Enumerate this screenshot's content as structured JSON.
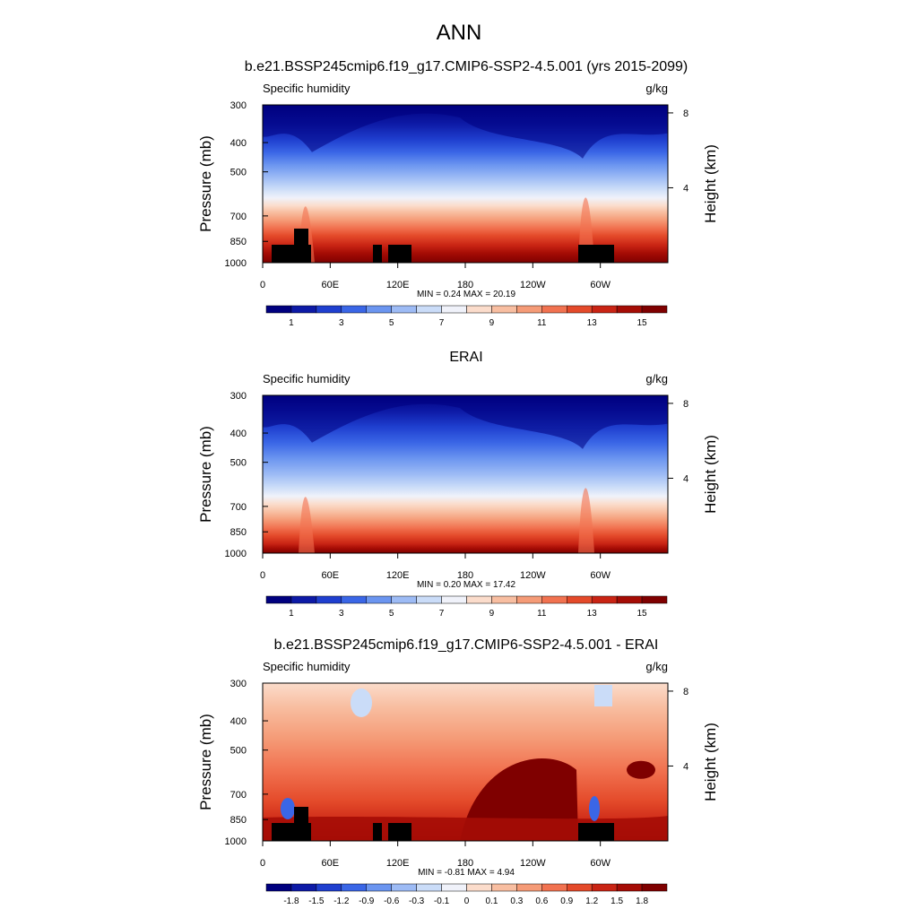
{
  "main_title": "ANN",
  "chart_data": [
    {
      "type": "contour",
      "title": "b.e21.BSSP245cmip6.f19_g17.CMIP6-SSP2-4.5.001 (yrs 2015-2099)",
      "left_label": "Specific humidity",
      "right_label": "g/kg",
      "ylabel": "Pressure (mb)",
      "ylabel_right": "Height (km)",
      "y_ticks": [
        "300",
        "400",
        "500",
        "700",
        "850",
        "1000"
      ],
      "y_tick_values": [
        300,
        400,
        500,
        700,
        850,
        1000
      ],
      "right_ticks": [
        "8",
        "4"
      ],
      "right_tick_values": [
        8,
        4
      ],
      "x_ticks": [
        "0",
        "60E",
        "120E",
        "180",
        "120W",
        "60W"
      ],
      "x_tick_values": [
        0,
        60,
        120,
        180,
        240,
        300
      ],
      "xlim": [
        0,
        360
      ],
      "ylim": [
        1000,
        300
      ],
      "stats": "MIN =   0.24  MAX =  20.19",
      "colorbar_labels": [
        "1",
        "3",
        "5",
        "7",
        "9",
        "11",
        "13",
        "15"
      ],
      "colorbar_label_slots": [
        1,
        3,
        5,
        7,
        9,
        11,
        13,
        15
      ],
      "variant": "model"
    },
    {
      "type": "contour",
      "title": "ERAI",
      "left_label": "Specific humidity",
      "right_label": "g/kg",
      "ylabel": "Pressure (mb)",
      "ylabel_right": "Height (km)",
      "y_ticks": [
        "300",
        "400",
        "500",
        "700",
        "850",
        "1000"
      ],
      "y_tick_values": [
        300,
        400,
        500,
        700,
        850,
        1000
      ],
      "right_ticks": [
        "8",
        "4"
      ],
      "right_tick_values": [
        8,
        4
      ],
      "x_ticks": [
        "0",
        "60E",
        "120E",
        "180",
        "120W",
        "60W"
      ],
      "x_tick_values": [
        0,
        60,
        120,
        180,
        240,
        300
      ],
      "xlim": [
        0,
        360
      ],
      "ylim": [
        1000,
        300
      ],
      "stats": "MIN =   0.20  MAX =  17.42",
      "colorbar_labels": [
        "1",
        "3",
        "5",
        "7",
        "9",
        "11",
        "13",
        "15"
      ],
      "colorbar_label_slots": [
        1,
        3,
        5,
        7,
        9,
        11,
        13,
        15
      ],
      "variant": "obs"
    },
    {
      "type": "contour",
      "title": "b.e21.BSSP245cmip6.f19_g17.CMIP6-SSP2-4.5.001 - ERAI",
      "left_label": "Specific humidity",
      "right_label": "g/kg",
      "ylabel": "Pressure (mb)",
      "ylabel_right": "Height (km)",
      "y_ticks": [
        "300",
        "400",
        "500",
        "700",
        "850",
        "1000"
      ],
      "y_tick_values": [
        300,
        400,
        500,
        700,
        850,
        1000
      ],
      "right_ticks": [
        "8",
        "4"
      ],
      "right_tick_values": [
        8,
        4
      ],
      "x_ticks": [
        "0",
        "60E",
        "120E",
        "180",
        "120W",
        "60W"
      ],
      "x_tick_values": [
        0,
        60,
        120,
        180,
        240,
        300
      ],
      "xlim": [
        0,
        360
      ],
      "ylim": [
        1000,
        300
      ],
      "stats": "MIN =  -0.81  MAX =   4.94",
      "colorbar_labels": [
        "-1.8",
        "-1.5",
        "-1.2",
        "-0.9",
        "-0.6",
        "-0.3",
        "-0.1",
        "0",
        "0.1",
        "0.3",
        "0.6",
        "0.9",
        "1.2",
        "1.5",
        "1.8"
      ],
      "colorbar_label_slots": [
        1,
        2,
        3,
        4,
        5,
        6,
        7,
        8,
        9,
        10,
        11,
        12,
        13,
        14,
        15
      ],
      "variant": "diff"
    }
  ],
  "colorbar_colors": [
    "#00007f",
    "#0d1aa6",
    "#1f3fcf",
    "#3a66e6",
    "#6b95f0",
    "#9dbbf5",
    "#cadcf8",
    "#f0f2fa",
    "#fbdccb",
    "#f8bea1",
    "#f59b77",
    "#f17250",
    "#e44a2a",
    "#c92414",
    "#a50c05",
    "#7f0000"
  ]
}
